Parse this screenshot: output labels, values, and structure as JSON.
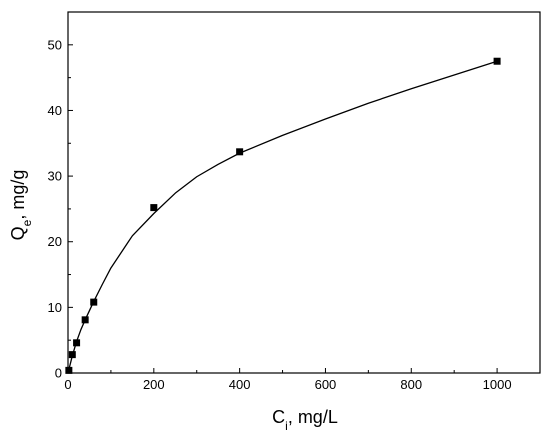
{
  "chart_data": {
    "type": "scatter",
    "title": "",
    "xlabel": {
      "main": "C",
      "sub": "i",
      "rest": ", mg/L"
    },
    "ylabel": {
      "main": "Q",
      "sub": "e",
      "rest": ", mg/g"
    },
    "xlim": [
      0,
      1100
    ],
    "ylim": [
      0,
      55
    ],
    "xticks": [
      0,
      200,
      400,
      600,
      800,
      1000
    ],
    "yticks": [
      0,
      10,
      20,
      30,
      40,
      50
    ],
    "grid": false,
    "legend": "none",
    "colors": {
      "marker": "#000000",
      "line": "#000000",
      "axes": "#000000"
    },
    "series": [
      {
        "kind": "markers",
        "marker": "square",
        "x": [
          2,
          10,
          20,
          40,
          60,
          200,
          400,
          1000
        ],
        "y": [
          0.4,
          2.8,
          4.6,
          8.1,
          10.8,
          25.2,
          33.7,
          47.5
        ]
      },
      {
        "kind": "fitted-line",
        "x": [
          0,
          5,
          10,
          20,
          30,
          40,
          60,
          80,
          100,
          150,
          200,
          250,
          300,
          350,
          400,
          500,
          600,
          700,
          800,
          900,
          1000
        ],
        "y": [
          0,
          1.3,
          2.6,
          4.8,
          6.6,
          8.1,
          10.9,
          13.5,
          16,
          20.9,
          24.3,
          27.4,
          29.9,
          31.8,
          33.5,
          36.2,
          38.7,
          41.1,
          43.3,
          45.4,
          47.5
        ]
      }
    ]
  }
}
